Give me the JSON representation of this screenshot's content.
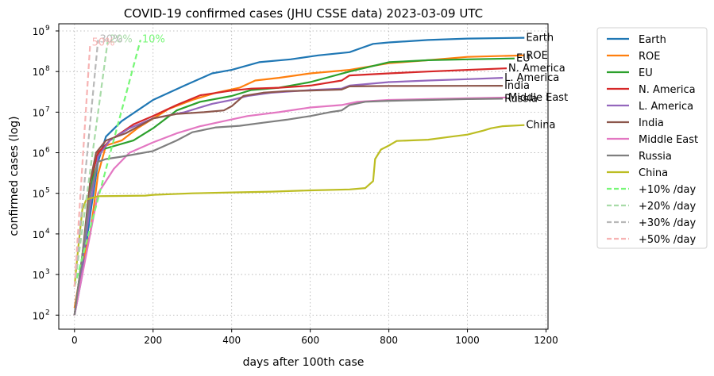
{
  "chart_data": {
    "type": "line",
    "title": "COVID-19 confirmed cases (JHU CSSE data) 2023-03-09 UTC",
    "xlabel": "days after 100th case",
    "ylabel": "confirmed cases (log)",
    "xlim": [
      -40,
      1205
    ],
    "ylim": [
      45,
      1500000000
    ],
    "yscale": "log",
    "xticks": [
      0,
      200,
      400,
      600,
      800,
      1000,
      1200
    ],
    "yticks": [
      {
        "v": 100,
        "label": "10"
      },
      {
        "v": 1000,
        "label": "10"
      },
      {
        "v": 10000,
        "label": "10"
      },
      {
        "v": 100000,
        "label": "10"
      },
      {
        "v": 1000000,
        "label": "10"
      },
      {
        "v": 10000000,
        "label": "10"
      },
      {
        "v": 100000000,
        "label": "10"
      },
      {
        "v": 1000000000,
        "label": "10"
      }
    ],
    "ytick_exponents": [
      "2",
      "3",
      "4",
      "5",
      "6",
      "7",
      "8",
      "9"
    ],
    "grid": true,
    "legend_position": "outside-right",
    "series": [
      {
        "name": "Earth",
        "color": "#1f77b4",
        "end_label": "Earth",
        "points": [
          [
            0,
            100
          ],
          [
            20,
            1000
          ],
          [
            40,
            30000
          ],
          [
            60,
            600000
          ],
          [
            80,
            2500000
          ],
          [
            120,
            6000000
          ],
          [
            200,
            20000000
          ],
          [
            280,
            45000000
          ],
          [
            350,
            90000000
          ],
          [
            400,
            110000000
          ],
          [
            470,
            170000000
          ],
          [
            550,
            200000000
          ],
          [
            620,
            250000000
          ],
          [
            700,
            300000000
          ],
          [
            730,
            380000000
          ],
          [
            760,
            480000000
          ],
          [
            800,
            520000000
          ],
          [
            900,
            600000000
          ],
          [
            1000,
            650000000
          ],
          [
            1145,
            680000000
          ]
        ]
      },
      {
        "name": "ROE",
        "color": "#ff7f0e",
        "end_label": "ROE",
        "points": [
          [
            0,
            150
          ],
          [
            20,
            2000
          ],
          [
            40,
            10000
          ],
          [
            60,
            300000
          ],
          [
            80,
            1500000
          ],
          [
            120,
            2000000
          ],
          [
            160,
            4000000
          ],
          [
            240,
            12000000
          ],
          [
            300,
            20000000
          ],
          [
            360,
            30000000
          ],
          [
            420,
            40000000
          ],
          [
            460,
            60000000
          ],
          [
            520,
            70000000
          ],
          [
            600,
            90000000
          ],
          [
            700,
            110000000
          ],
          [
            800,
            160000000
          ],
          [
            900,
            190000000
          ],
          [
            1000,
            230000000
          ],
          [
            1145,
            250000000
          ]
        ]
      },
      {
        "name": "EU",
        "color": "#2ca02c",
        "end_label": "EU",
        "points": [
          [
            0,
            100
          ],
          [
            20,
            3000
          ],
          [
            40,
            100000
          ],
          [
            55,
            800000
          ],
          [
            70,
            1200000
          ],
          [
            150,
            2000000
          ],
          [
            200,
            4000000
          ],
          [
            260,
            11000000
          ],
          [
            320,
            18000000
          ],
          [
            400,
            25000000
          ],
          [
            450,
            35000000
          ],
          [
            520,
            40000000
          ],
          [
            600,
            55000000
          ],
          [
            700,
            100000000
          ],
          [
            800,
            170000000
          ],
          [
            900,
            190000000
          ],
          [
            1000,
            200000000
          ],
          [
            1120,
            210000000
          ]
        ]
      },
      {
        "name": "N. America",
        "color": "#d62728",
        "end_label": "N. America",
        "points": [
          [
            0,
            100
          ],
          [
            20,
            2000
          ],
          [
            40,
            200000
          ],
          [
            60,
            1000000
          ],
          [
            90,
            2000000
          ],
          [
            150,
            5000000
          ],
          [
            200,
            8000000
          ],
          [
            260,
            15000000
          ],
          [
            320,
            26000000
          ],
          [
            400,
            34000000
          ],
          [
            450,
            38000000
          ],
          [
            520,
            40000000
          ],
          [
            600,
            45000000
          ],
          [
            680,
            60000000
          ],
          [
            700,
            80000000
          ],
          [
            800,
            90000000
          ],
          [
            900,
            100000000
          ],
          [
            1000,
            110000000
          ],
          [
            1100,
            120000000
          ]
        ]
      },
      {
        "name": "L. America",
        "color": "#9467bd",
        "end_label": "L. America",
        "points": [
          [
            0,
            100
          ],
          [
            20,
            2000
          ],
          [
            40,
            50000
          ],
          [
            60,
            800000
          ],
          [
            90,
            2000000
          ],
          [
            140,
            4000000
          ],
          [
            200,
            7000000
          ],
          [
            280,
            10000000
          ],
          [
            350,
            16000000
          ],
          [
            400,
            20000000
          ],
          [
            440,
            25000000
          ],
          [
            500,
            30000000
          ],
          [
            600,
            35000000
          ],
          [
            680,
            38000000
          ],
          [
            700,
            45000000
          ],
          [
            800,
            55000000
          ],
          [
            900,
            60000000
          ],
          [
            1000,
            65000000
          ],
          [
            1090,
            70000000
          ]
        ]
      },
      {
        "name": "India",
        "color": "#8c564b",
        "end_label": "India",
        "points": [
          [
            0,
            100
          ],
          [
            20,
            3000
          ],
          [
            40,
            200000
          ],
          [
            55,
            1000000
          ],
          [
            80,
            2000000
          ],
          [
            130,
            3000000
          ],
          [
            200,
            7000000
          ],
          [
            260,
            9000000
          ],
          [
            330,
            10000000
          ],
          [
            380,
            11000000
          ],
          [
            400,
            14000000
          ],
          [
            430,
            25000000
          ],
          [
            480,
            30000000
          ],
          [
            540,
            33000000
          ],
          [
            600,
            34000000
          ],
          [
            680,
            36000000
          ],
          [
            700,
            43000000
          ],
          [
            800,
            44000000
          ],
          [
            1000,
            44500000
          ],
          [
            1090,
            44700000
          ]
        ]
      },
      {
        "name": "Middle East",
        "color": "#e377c2",
        "end_label": "Middle East",
        "points": [
          [
            0,
            100
          ],
          [
            20,
            1000
          ],
          [
            40,
            10000
          ],
          [
            60,
            100000
          ],
          [
            100,
            400000
          ],
          [
            140,
            1000000
          ],
          [
            200,
            1800000
          ],
          [
            260,
            3000000
          ],
          [
            320,
            4500000
          ],
          [
            380,
            6000000
          ],
          [
            440,
            8000000
          ],
          [
            520,
            10000000
          ],
          [
            600,
            13000000
          ],
          [
            680,
            15000000
          ],
          [
            720,
            18000000
          ],
          [
            800,
            20000000
          ],
          [
            900,
            21000000
          ],
          [
            1000,
            22000000
          ],
          [
            1100,
            23000000
          ]
        ]
      },
      {
        "name": "Russia",
        "color": "#7f7f7f",
        "end_label": "Russia",
        "points": [
          [
            0,
            100
          ],
          [
            20,
            3000
          ],
          [
            40,
            100000
          ],
          [
            60,
            600000
          ],
          [
            80,
            700000
          ],
          [
            120,
            800000
          ],
          [
            200,
            1100000
          ],
          [
            260,
            2000000
          ],
          [
            300,
            3200000
          ],
          [
            360,
            4200000
          ],
          [
            420,
            4600000
          ],
          [
            480,
            5500000
          ],
          [
            540,
            6500000
          ],
          [
            600,
            8000000
          ],
          [
            650,
            10000000
          ],
          [
            680,
            11000000
          ],
          [
            700,
            15000000
          ],
          [
            740,
            18000000
          ],
          [
            800,
            19000000
          ],
          [
            900,
            20000000
          ],
          [
            1000,
            21000000
          ],
          [
            1090,
            21500000
          ]
        ]
      },
      {
        "name": "China",
        "color": "#bcbd22",
        "end_label": "China",
        "points": [
          [
            0,
            500
          ],
          [
            10,
            5000
          ],
          [
            20,
            40000
          ],
          [
            30,
            70000
          ],
          [
            60,
            85000
          ],
          [
            100,
            86000
          ],
          [
            180,
            88000
          ],
          [
            200,
            92000
          ],
          [
            300,
            100000
          ],
          [
            400,
            105000
          ],
          [
            500,
            110000
          ],
          [
            600,
            118000
          ],
          [
            700,
            125000
          ],
          [
            740,
            135000
          ],
          [
            760,
            200000
          ],
          [
            765,
            700000
          ],
          [
            780,
            1200000
          ],
          [
            800,
            1500000
          ],
          [
            820,
            1950000
          ],
          [
            900,
            2100000
          ],
          [
            960,
            2500000
          ],
          [
            1000,
            2800000
          ],
          [
            1040,
            3500000
          ],
          [
            1060,
            4000000
          ],
          [
            1090,
            4500000
          ],
          [
            1145,
            4800000
          ]
        ]
      },
      {
        "name": "+10% /day",
        "color": "#77f777",
        "dashed": true,
        "end_label": "10%",
        "points": [
          [
            0,
            500
          ],
          [
            168,
            600000000
          ]
        ]
      },
      {
        "name": "+20% /day",
        "color": "#a8dba8",
        "dashed": true,
        "end_label": "20%",
        "points": [
          [
            0,
            500
          ],
          [
            85,
            600000000
          ]
        ]
      },
      {
        "name": "+30% /day",
        "color": "#b8b8b8",
        "dashed": true,
        "end_label": "30%",
        "points": [
          [
            0,
            500
          ],
          [
            60,
            600000000
          ]
        ]
      },
      {
        "name": "+50% /day",
        "color": "#f7b3b3",
        "dashed": true,
        "end_label": "50%",
        "points": [
          [
            0,
            500
          ],
          [
            40,
            500000000
          ]
        ]
      }
    ]
  }
}
